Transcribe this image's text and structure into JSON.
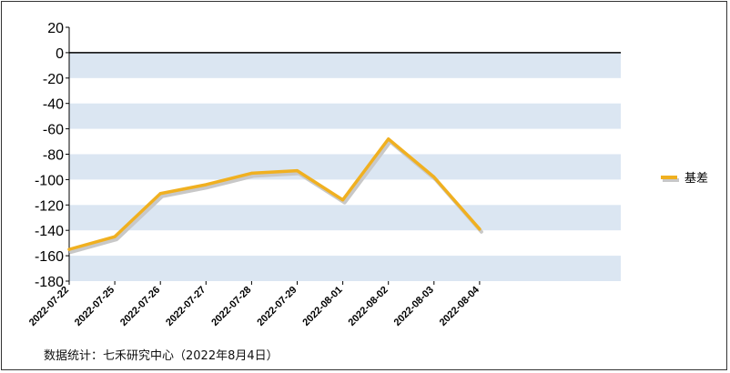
{
  "chart_data": {
    "type": "line",
    "categories": [
      "2022-07-22",
      "2022-07-25",
      "2022-07-26",
      "2022-07-27",
      "2022-07-28",
      "2022-07-29",
      "2022-08-01",
      "2022-08-02",
      "2022-08-03",
      "2022-08-04"
    ],
    "series": [
      {
        "name": "基差",
        "values": [
          -155,
          -145,
          -111,
          -104,
          -95,
          -93,
          -116,
          -68,
          -98,
          -139
        ]
      }
    ],
    "yticks": [
      20,
      0,
      -20,
      -40,
      -60,
      -80,
      -100,
      -120,
      -140,
      -160,
      -180
    ],
    "ylim": [
      -180,
      20
    ],
    "legend_position": "right",
    "colors": {
      "line": "#f0b020",
      "shadow": "#c8c8c8",
      "band": "#dbe6f2",
      "axis": "#000000"
    },
    "grid": "alternating-bands"
  },
  "footer": {
    "source": "数据统计：七禾研究中心（2022年8月4日）"
  }
}
